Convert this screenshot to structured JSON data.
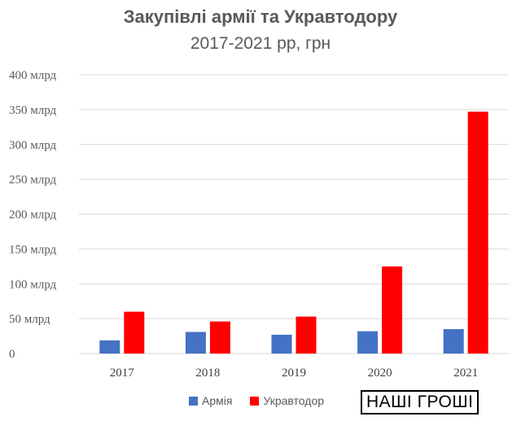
{
  "chart_data": {
    "type": "bar",
    "title": "Закупівлі армії та Укравтодору",
    "subtitle": "2017-2021 рр, грн",
    "categories": [
      "2017",
      "2018",
      "2019",
      "2020",
      "2021"
    ],
    "series": [
      {
        "name": "Армія",
        "color": "#4472C4",
        "values": [
          19,
          31,
          27,
          32,
          35
        ]
      },
      {
        "name": "Укравтодор",
        "color": "#FF0000",
        "values": [
          60,
          46,
          53,
          125,
          347
        ]
      }
    ],
    "yticks": [
      "0",
      "50 млрд",
      "100 млрд",
      "150 млрд",
      "200 млрд",
      "250 млрд",
      "300 млрд",
      "350 млрд",
      "400 млрд"
    ],
    "ylim": [
      0,
      400
    ],
    "grid": true,
    "legend_position": "bottom"
  },
  "watermark": "НАШІ ГРОШІ"
}
